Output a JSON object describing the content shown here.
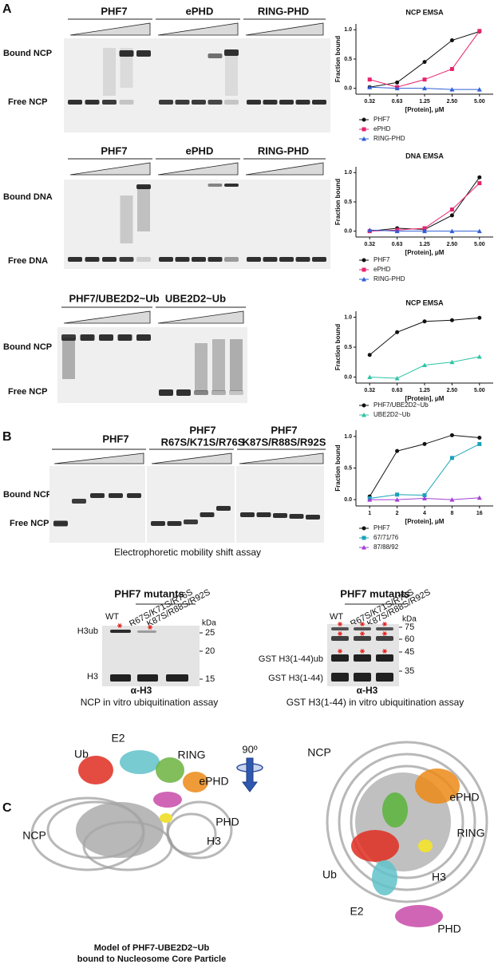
{
  "panel_labels": [
    "A",
    "B",
    "C"
  ],
  "panel_A": {
    "gels": [
      {
        "headers": [
          "PHF7",
          "ePHD",
          "RING-PHD"
        ],
        "side_labels": [
          "Bound NCP",
          "Free NCP"
        ]
      },
      {
        "headers": [
          "PHF7",
          "ePHD",
          "RING-PHD"
        ],
        "side_labels": [
          "Bound DNA",
          "Free DNA"
        ]
      },
      {
        "headers": [
          "PHF7/UBE2D2~Ub",
          "UBE2D2~Ub"
        ],
        "side_labels": [
          "Bound NCP",
          "Free NCP"
        ]
      }
    ]
  },
  "panel_B": {
    "headers": [
      [
        "PHF7"
      ],
      [
        "PHF7",
        "R67S/K71S/R76S"
      ],
      [
        "PHF7",
        "K87S/R88S/R92S"
      ]
    ],
    "side_labels": [
      "Bound NCP",
      "Free NCP"
    ],
    "caption": "Electrophoretic mobility shift assay"
  },
  "blots": [
    {
      "title": "PHF7 mutants",
      "lanes": [
        "WT",
        "R67S/K71S/R76S",
        "K87S/R88S/R92S"
      ],
      "unit": "kDa",
      "markers": [
        25,
        20,
        15
      ],
      "bands": [
        "H3ub",
        "H3"
      ],
      "antibody": "α-H3",
      "caption": "NCP in vitro ubiquitination assay"
    },
    {
      "title": "PHF7 mutants",
      "lanes": [
        "WT",
        "R67S/K71S/R76S",
        "K87S/R88S/R92S"
      ],
      "unit": "kDa",
      "markers": [
        75,
        60,
        45,
        35
      ],
      "bands": [
        "GST H3(1-44)ub",
        "GST H3(1-44)"
      ],
      "antibody": "α-H3",
      "caption": "GST H3(1-44) in vitro ubiquitination assay"
    }
  ],
  "panel_C": {
    "left_labels": [
      "E2",
      "Ub",
      "RING",
      "ePHD",
      "NCP",
      "PHD",
      "H3"
    ],
    "rotation": "90º",
    "right_labels": [
      "NCP",
      "ePHD",
      "RING",
      "Ub",
      "H3",
      "E2",
      "PHD"
    ],
    "caption": [
      "Model of PHF7-UBE2D2~Ub",
      "bound to Nucleosome Core Particle"
    ]
  },
  "chart_data": [
    {
      "type": "line",
      "title": "NCP EMSA",
      "categories": [
        "0.32",
        "0.63",
        "1.25",
        "2.50",
        "5.00"
      ],
      "x_label": "[Protein], μM",
      "y_label": "Fraction bound",
      "ylim": [
        -0.1,
        1.1
      ],
      "yticks": [
        {
          "value": 0,
          "label": "0.0"
        },
        0.5,
        {
          "value": 1,
          "label": "1.0"
        }
      ],
      "series": [
        {
          "name": "PHF7",
          "color": "#111111",
          "marker": "circle",
          "values": [
            0.02,
            0.1,
            0.45,
            0.82,
            0.97
          ]
        },
        {
          "name": "ePHD",
          "color": "#e6246e",
          "marker": "square",
          "values": [
            0.15,
            0.02,
            0.15,
            0.33,
            0.98
          ]
        },
        {
          "name": "RING-PHD",
          "color": "#2f5fd8",
          "marker": "triangle",
          "values": [
            0.02,
            0.0,
            0.0,
            -0.02,
            -0.02
          ]
        }
      ]
    },
    {
      "type": "line",
      "title": "DNA EMSA",
      "categories": [
        "0.32",
        "0.63",
        "1.25",
        "2.50",
        "5.00"
      ],
      "x_label": "[Protein], μM",
      "y_label": "Fraction bound",
      "ylim": [
        -0.1,
        1.1
      ],
      "yticks": [
        {
          "value": 0,
          "label": "0.0"
        },
        0.5,
        {
          "value": 1,
          "label": "1.0"
        }
      ],
      "series": [
        {
          "name": "PHF7",
          "color": "#111111",
          "marker": "circle",
          "values": [
            0.0,
            0.05,
            0.03,
            0.27,
            0.92
          ]
        },
        {
          "name": "ePHD",
          "color": "#e6246e",
          "marker": "square",
          "values": [
            0.0,
            0.02,
            0.05,
            0.37,
            0.82
          ]
        },
        {
          "name": "RING-PHD",
          "color": "#2f5fd8",
          "marker": "triangle",
          "values": [
            0.02,
            0.0,
            0.0,
            0.0,
            0.0
          ]
        }
      ]
    },
    {
      "type": "line",
      "title": "NCP EMSA",
      "categories": [
        "0.32",
        "0.63",
        "1.25",
        "2.50",
        "5.00"
      ],
      "x_label": "[Protein], μM",
      "y_label": "Fraction bound",
      "ylim": [
        -0.1,
        1.1
      ],
      "yticks": [
        {
          "value": 0,
          "label": "0.0"
        },
        0.5,
        {
          "value": 1,
          "label": "1.0"
        }
      ],
      "series": [
        {
          "name": "PHF7/UBE2D2~Ub",
          "color": "#111111",
          "marker": "circle",
          "values": [
            0.37,
            0.75,
            0.93,
            0.95,
            0.99
          ]
        },
        {
          "name": "UBE2D2~Ub",
          "color": "#2ec4a6",
          "marker": "triangle",
          "values": [
            0.0,
            -0.02,
            0.2,
            0.25,
            0.34
          ]
        }
      ]
    },
    {
      "type": "line",
      "categories": [
        "1",
        "2",
        "4",
        "8",
        "16"
      ],
      "x_label": "[Protein], μM",
      "y_label": "Fraction bound",
      "ylim": [
        -0.1,
        1.1
      ],
      "yticks": [
        {
          "value": 0,
          "label": "0.0"
        },
        0.5,
        {
          "value": 1,
          "label": "1.0"
        }
      ],
      "series": [
        {
          "name": "PHF7",
          "color": "#111111",
          "marker": "circle",
          "values": [
            0.05,
            0.77,
            0.88,
            1.02,
            0.98
          ]
        },
        {
          "name": "67/71/76",
          "color": "#1aa3b8",
          "marker": "square",
          "values": [
            0.02,
            0.08,
            0.07,
            0.66,
            0.88
          ]
        },
        {
          "name": "87/88/92",
          "color": "#a23fd6",
          "marker": "triangle",
          "values": [
            0.0,
            0.0,
            0.02,
            0.0,
            0.03
          ]
        }
      ]
    }
  ]
}
